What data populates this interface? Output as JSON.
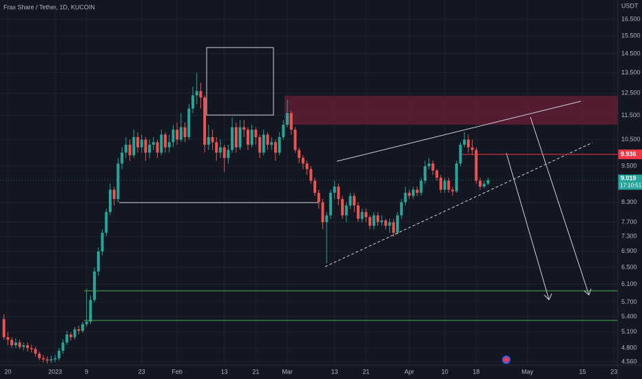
{
  "chart_data": {
    "type": "candlestick",
    "title": "Frax Share / Tether, 1D, KUCOIN",
    "y_axis_label": "USDT",
    "log": true,
    "grid": true,
    "up_color": "#26a69a",
    "down_color": "#ef5350",
    "xlim": [
      "2022-12-18",
      "2023-05-24"
    ],
    "ylim": [
      4.5,
      17.74
    ],
    "xticks": [
      {
        "value": "2022-12-20",
        "label": "20"
      },
      {
        "value": "2023-01-01",
        "label": "2023"
      },
      {
        "value": "2023-01-09",
        "label": "9"
      },
      {
        "value": "2023-01-23",
        "label": "23"
      },
      {
        "value": "2023-02-01",
        "label": "Feb"
      },
      {
        "value": "2023-02-13",
        "label": "13"
      },
      {
        "value": "2023-02-21",
        "label": "21"
      },
      {
        "value": "2023-03-01",
        "label": "Mar"
      },
      {
        "value": "2023-03-13",
        "label": "13"
      },
      {
        "value": "2023-03-21",
        "label": "21"
      },
      {
        "value": "2023-04-01",
        "label": "Apr"
      },
      {
        "value": "2023-04-10",
        "label": "10"
      },
      {
        "value": "2023-04-18",
        "label": "18"
      },
      {
        "value": "2023-05-01",
        "label": "May"
      },
      {
        "value": "2023-05-15",
        "label": "15"
      },
      {
        "value": "2023-05-23",
        "label": "23"
      }
    ],
    "yticks": [
      {
        "value": 16.5,
        "label": "16.500"
      },
      {
        "value": 15.5,
        "label": "15.500"
      },
      {
        "value": 14.5,
        "label": "14.500"
      },
      {
        "value": 13.5,
        "label": "13.500"
      },
      {
        "value": 12.5,
        "label": "12.500"
      },
      {
        "value": 11.5,
        "label": "11.500"
      },
      {
        "value": 10.5,
        "label": "10.500"
      },
      {
        "value": 9.5,
        "label": "9.500"
      },
      {
        "value": 8.3,
        "label": "8.300"
      },
      {
        "value": 7.7,
        "label": "7.700"
      },
      {
        "value": 7.3,
        "label": "7.300"
      },
      {
        "value": 6.9,
        "label": "6.900"
      },
      {
        "value": 6.5,
        "label": "6.500"
      },
      {
        "value": 6.1,
        "label": "6.100"
      },
      {
        "value": 5.7,
        "label": "5.700"
      },
      {
        "value": 5.4,
        "label": "5.400"
      },
      {
        "value": 5.1,
        "label": "5.100"
      },
      {
        "value": 4.8,
        "label": "4.800"
      },
      {
        "value": 4.56,
        "label": "4.560"
      }
    ],
    "level": 9.936,
    "level_color": "#f23645",
    "last_price": 9.019,
    "countdown": "17:10:51",
    "x": [
      "2022-12-19",
      "2022-12-20",
      "2022-12-21",
      "2022-12-22",
      "2022-12-23",
      "2022-12-24",
      "2022-12-25",
      "2022-12-26",
      "2022-12-27",
      "2022-12-28",
      "2022-12-29",
      "2022-12-30",
      "2022-12-31",
      "2023-01-01",
      "2023-01-02",
      "2023-01-03",
      "2023-01-04",
      "2023-01-05",
      "2023-01-06",
      "2023-01-07",
      "2023-01-08",
      "2023-01-09",
      "2023-01-10",
      "2023-01-11",
      "2023-01-12",
      "2023-01-13",
      "2023-01-14",
      "2023-01-15",
      "2023-01-16",
      "2023-01-17",
      "2023-01-18",
      "2023-01-19",
      "2023-01-20",
      "2023-01-21",
      "2023-01-22",
      "2023-01-23",
      "2023-01-24",
      "2023-01-25",
      "2023-01-26",
      "2023-01-27",
      "2023-01-28",
      "2023-01-29",
      "2023-01-30",
      "2023-01-31",
      "2023-02-01",
      "2023-02-02",
      "2023-02-03",
      "2023-02-04",
      "2023-02-05",
      "2023-02-06",
      "2023-02-07",
      "2023-02-08",
      "2023-02-09",
      "2023-02-10",
      "2023-02-11",
      "2023-02-12",
      "2023-02-13",
      "2023-02-14",
      "2023-02-15",
      "2023-02-16",
      "2023-02-17",
      "2023-02-18",
      "2023-02-19",
      "2023-02-20",
      "2023-02-21",
      "2023-02-22",
      "2023-02-23",
      "2023-02-24",
      "2023-02-25",
      "2023-02-26",
      "2023-02-27",
      "2023-02-28",
      "2023-03-01",
      "2023-03-02",
      "2023-03-03",
      "2023-03-04",
      "2023-03-05",
      "2023-03-06",
      "2023-03-07",
      "2023-03-08",
      "2023-03-09",
      "2023-03-10",
      "2023-03-11",
      "2023-03-12",
      "2023-03-13",
      "2023-03-14",
      "2023-03-15",
      "2023-03-16",
      "2023-03-17",
      "2023-03-18",
      "2023-03-19",
      "2023-03-20",
      "2023-03-21",
      "2023-03-22",
      "2023-03-23",
      "2023-03-24",
      "2023-03-25",
      "2023-03-26",
      "2023-03-27",
      "2023-03-28",
      "2023-03-29",
      "2023-03-30",
      "2023-03-31",
      "2023-04-01",
      "2023-04-02",
      "2023-04-03",
      "2023-04-04",
      "2023-04-05",
      "2023-04-06",
      "2023-04-07",
      "2023-04-08",
      "2023-04-09",
      "2023-04-10",
      "2023-04-11",
      "2023-04-12",
      "2023-04-13",
      "2023-04-14",
      "2023-04-15",
      "2023-04-16",
      "2023-04-17",
      "2023-04-18",
      "2023-04-19",
      "2023-04-20",
      "2023-04-21"
    ],
    "open": [
      5.35,
      5.0,
      4.95,
      4.85,
      4.9,
      4.82,
      4.85,
      4.8,
      4.78,
      4.7,
      4.62,
      4.6,
      4.58,
      4.6,
      4.62,
      4.75,
      4.9,
      5.05,
      5.0,
      5.15,
      5.12,
      5.25,
      5.3,
      5.75,
      6.4,
      6.9,
      7.4,
      8.0,
      8.7,
      8.4,
      9.6,
      10.0,
      10.3,
      9.9,
      10.6,
      10.2,
      10.5,
      10.0,
      10.3,
      10.4,
      10.0,
      10.7,
      10.2,
      10.4,
      10.9,
      10.5,
      11.0,
      10.6,
      11.8,
      12.4,
      12.6,
      12.3,
      10.3,
      10.6,
      10.4,
      10.0,
      10.2,
      9.8,
      10.1,
      11.0,
      10.2,
      11.0,
      10.9,
      10.3,
      10.9,
      10.6,
      10.0,
      10.7,
      10.3,
      10.4,
      10.0,
      10.6,
      11.1,
      11.6,
      10.9,
      10.1,
      9.8,
      9.6,
      9.4,
      9.0,
      8.6,
      8.3,
      7.7,
      7.9,
      8.6,
      8.8,
      8.4,
      7.9,
      8.2,
      8.5,
      8.2,
      7.8,
      8.0,
      7.85,
      7.6,
      7.9,
      7.7,
      7.75,
      7.6,
      7.7,
      7.4,
      7.9,
      8.3,
      8.6,
      8.5,
      8.7,
      8.6,
      9.0,
      9.5,
      9.6,
      9.35,
      9.1,
      8.7,
      9.0,
      8.7,
      8.65,
      9.6,
      10.3,
      10.5,
      10.2,
      10.1,
      9.0,
      8.8,
      8.9
    ],
    "high": [
      5.45,
      5.1,
      5.0,
      4.98,
      4.95,
      4.9,
      4.9,
      4.86,
      4.82,
      4.74,
      4.68,
      4.65,
      4.66,
      4.68,
      4.8,
      4.96,
      5.12,
      5.1,
      5.2,
      5.22,
      5.3,
      6.0,
      5.85,
      6.5,
      7.0,
      7.5,
      8.1,
      8.9,
      8.8,
      9.8,
      10.2,
      10.6,
      10.5,
      10.9,
      10.8,
      10.7,
      10.6,
      10.5,
      10.6,
      10.5,
      10.9,
      10.8,
      10.7,
      11.1,
      11.2,
      11.6,
      11.2,
      12.0,
      12.8,
      13.5,
      13.0,
      12.4,
      11.1,
      10.9,
      10.6,
      10.5,
      10.3,
      10.3,
      11.4,
      11.2,
      11.3,
      11.3,
      11.0,
      11.1,
      11.0,
      10.7,
      10.9,
      10.8,
      10.6,
      10.5,
      10.8,
      11.3,
      12.2,
      11.7,
      11.0,
      10.2,
      9.9,
      9.7,
      9.5,
      9.1,
      8.7,
      8.4,
      8.0,
      8.7,
      9.0,
      8.9,
      8.5,
      8.3,
      8.6,
      8.6,
      8.3,
      8.1,
      8.1,
      7.9,
      8.0,
      8.0,
      7.9,
      7.8,
      7.8,
      7.8,
      8.0,
      8.4,
      8.8,
      8.7,
      8.8,
      8.8,
      9.1,
      9.7,
      9.8,
      9.7,
      9.4,
      9.2,
      9.1,
      9.1,
      8.8,
      9.7,
      10.4,
      10.8,
      10.7,
      10.5,
      10.2,
      9.1,
      9.0,
      9.1
    ],
    "low": [
      4.95,
      4.85,
      4.8,
      4.8,
      4.78,
      4.76,
      4.74,
      4.72,
      4.65,
      4.58,
      4.55,
      4.53,
      4.54,
      4.55,
      4.58,
      4.7,
      4.86,
      4.94,
      4.96,
      5.05,
      5.08,
      5.2,
      5.25,
      5.7,
      6.3,
      6.8,
      7.3,
      7.9,
      8.2,
      8.3,
      9.4,
      9.8,
      9.7,
      9.8,
      10.0,
      10.0,
      9.7,
      9.8,
      10.1,
      9.8,
      9.9,
      10.0,
      10.0,
      10.2,
      10.3,
      10.4,
      10.4,
      10.5,
      11.6,
      12.0,
      11.8,
      10.0,
      10.1,
      10.1,
      9.7,
      9.8,
      9.3,
      9.6,
      10.0,
      10.0,
      10.1,
      10.6,
      10.1,
      10.2,
      10.3,
      9.8,
      9.9,
      10.1,
      10.1,
      9.7,
      9.9,
      10.5,
      11.0,
      10.7,
      10.0,
      9.6,
      9.4,
      9.2,
      8.9,
      8.5,
      8.1,
      7.5,
      6.6,
      7.8,
      8.4,
      8.2,
      7.8,
      7.7,
      8.1,
      8.0,
      7.7,
      7.7,
      7.7,
      7.5,
      7.5,
      7.6,
      7.6,
      7.5,
      7.4,
      7.3,
      7.35,
      7.8,
      8.2,
      8.4,
      8.4,
      8.5,
      8.5,
      8.9,
      9.4,
      9.2,
      9.0,
      8.6,
      8.6,
      8.6,
      8.5,
      8.6,
      9.5,
      10.2,
      10.0,
      9.9,
      8.9,
      8.7,
      8.75,
      8.85
    ],
    "close": [
      5.0,
      4.95,
      4.85,
      4.9,
      4.82,
      4.85,
      4.8,
      4.78,
      4.7,
      4.62,
      4.6,
      4.58,
      4.6,
      4.62,
      4.75,
      4.9,
      5.05,
      5.0,
      5.15,
      5.12,
      5.25,
      5.3,
      5.75,
      6.4,
      6.9,
      7.4,
      8.0,
      8.7,
      8.4,
      9.6,
      10.0,
      10.3,
      9.9,
      10.6,
      10.2,
      10.5,
      10.0,
      10.3,
      10.4,
      10.0,
      10.7,
      10.2,
      10.4,
      10.9,
      10.5,
      11.0,
      10.6,
      11.8,
      12.4,
      12.6,
      12.3,
      10.3,
      10.6,
      10.4,
      10.0,
      10.2,
      9.8,
      10.1,
      11.0,
      10.2,
      11.0,
      10.9,
      10.3,
      10.9,
      10.6,
      10.0,
      10.7,
      10.3,
      10.4,
      10.0,
      10.6,
      11.1,
      11.6,
      10.9,
      10.1,
      9.8,
      9.6,
      9.4,
      9.0,
      8.6,
      8.3,
      7.7,
      7.9,
      8.6,
      8.8,
      8.4,
      7.9,
      8.2,
      8.5,
      8.2,
      7.8,
      8.0,
      7.85,
      7.6,
      7.9,
      7.7,
      7.75,
      7.6,
      7.7,
      7.4,
      7.9,
      8.3,
      8.6,
      8.5,
      8.7,
      8.6,
      9.0,
      9.5,
      9.6,
      9.35,
      9.1,
      8.7,
      9.0,
      8.7,
      8.65,
      9.6,
      10.3,
      10.5,
      10.2,
      10.1,
      9.0,
      8.8,
      8.9,
      9.019
    ]
  }
}
